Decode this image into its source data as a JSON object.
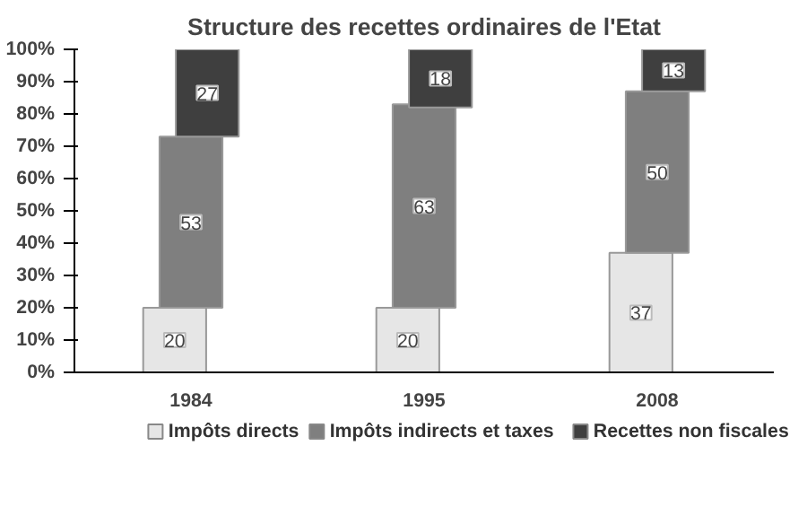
{
  "chart_data": {
    "type": "bar",
    "title": "Structure des recettes ordinaires de l'Etat",
    "categories": [
      "1984",
      "1995",
      "2008"
    ],
    "data_labels": true,
    "legend": "bottom",
    "ylim": [
      0,
      100
    ],
    "yticks": [
      {
        "value": 0,
        "label": "0%"
      },
      {
        "value": 10,
        "label": "10%"
      },
      {
        "value": 20,
        "label": "20%"
      },
      {
        "value": 30,
        "label": "30%"
      },
      {
        "value": 40,
        "label": "40%"
      },
      {
        "value": 50,
        "label": "50%"
      },
      {
        "value": 60,
        "label": "60%"
      },
      {
        "value": 70,
        "label": "70%"
      },
      {
        "value": 80,
        "label": "80%"
      },
      {
        "value": 90,
        "label": "90%"
      },
      {
        "value": 100,
        "label": "100%"
      }
    ],
    "series": [
      {
        "name": "Impôts directs",
        "color": "#e6e6e6",
        "values": [
          20,
          20,
          37
        ],
        "base": [
          0,
          0,
          0
        ]
      },
      {
        "name": "Impôts indirects et  taxes",
        "color": "#7f7f7f",
        "values": [
          53,
          63,
          50
        ],
        "base": [
          20,
          20,
          37
        ]
      },
      {
        "name": "Recettes non fiscales",
        "color": "#3f3f3f",
        "values": [
          27,
          18,
          13
        ],
        "base": [
          73,
          82,
          87
        ]
      }
    ]
  }
}
